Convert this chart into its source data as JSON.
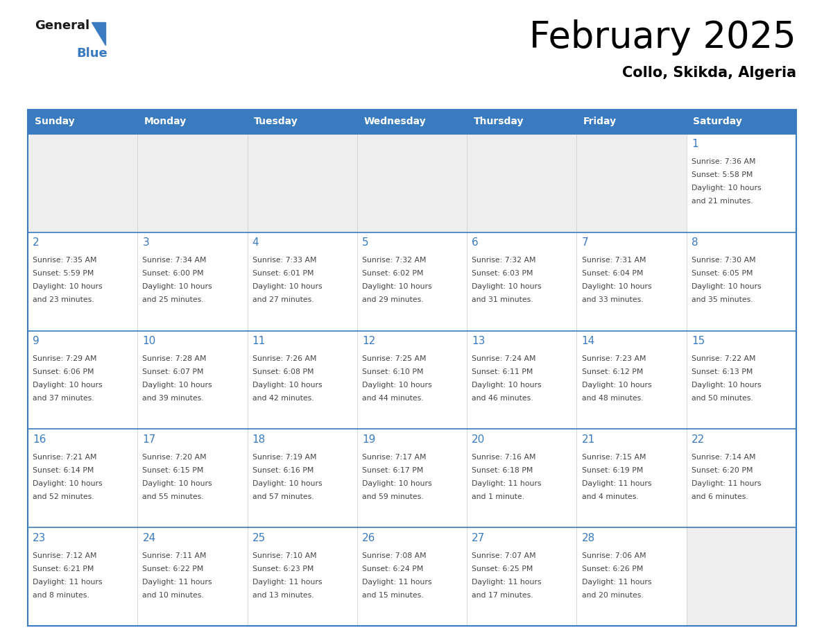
{
  "title": "February 2025",
  "subtitle": "Collo, Skikda, Algeria",
  "header_color": "#3a7bbf",
  "header_text_color": "#ffffff",
  "day_names": [
    "Sunday",
    "Monday",
    "Tuesday",
    "Wednesday",
    "Thursday",
    "Friday",
    "Saturday"
  ],
  "title_fontsize": 38,
  "subtitle_fontsize": 15,
  "border_color": "#3a7bbf",
  "day_number_color": "#3a7bbf",
  "text_color": "#444444",
  "logo_general_color": "#1a1a1a",
  "logo_blue_color": "#3a7bbf",
  "logo_triangle_color": "#3a7bbf",
  "cell_empty_bg": "#eeeeee",
  "cell_filled_bg": "#ffffff",
  "calendar_data": [
    [
      null,
      null,
      null,
      null,
      null,
      null,
      {
        "day": 1,
        "sunrise": "7:36 AM",
        "sunset": "5:58 PM",
        "daylight": "10 hours and 21 minutes."
      }
    ],
    [
      {
        "day": 2,
        "sunrise": "7:35 AM",
        "sunset": "5:59 PM",
        "daylight": "10 hours and 23 minutes."
      },
      {
        "day": 3,
        "sunrise": "7:34 AM",
        "sunset": "6:00 PM",
        "daylight": "10 hours and 25 minutes."
      },
      {
        "day": 4,
        "sunrise": "7:33 AM",
        "sunset": "6:01 PM",
        "daylight": "10 hours and 27 minutes."
      },
      {
        "day": 5,
        "sunrise": "7:32 AM",
        "sunset": "6:02 PM",
        "daylight": "10 hours and 29 minutes."
      },
      {
        "day": 6,
        "sunrise": "7:32 AM",
        "sunset": "6:03 PM",
        "daylight": "10 hours and 31 minutes."
      },
      {
        "day": 7,
        "sunrise": "7:31 AM",
        "sunset": "6:04 PM",
        "daylight": "10 hours and 33 minutes."
      },
      {
        "day": 8,
        "sunrise": "7:30 AM",
        "sunset": "6:05 PM",
        "daylight": "10 hours and 35 minutes."
      }
    ],
    [
      {
        "day": 9,
        "sunrise": "7:29 AM",
        "sunset": "6:06 PM",
        "daylight": "10 hours and 37 minutes."
      },
      {
        "day": 10,
        "sunrise": "7:28 AM",
        "sunset": "6:07 PM",
        "daylight": "10 hours and 39 minutes."
      },
      {
        "day": 11,
        "sunrise": "7:26 AM",
        "sunset": "6:08 PM",
        "daylight": "10 hours and 42 minutes."
      },
      {
        "day": 12,
        "sunrise": "7:25 AM",
        "sunset": "6:10 PM",
        "daylight": "10 hours and 44 minutes."
      },
      {
        "day": 13,
        "sunrise": "7:24 AM",
        "sunset": "6:11 PM",
        "daylight": "10 hours and 46 minutes."
      },
      {
        "day": 14,
        "sunrise": "7:23 AM",
        "sunset": "6:12 PM",
        "daylight": "10 hours and 48 minutes."
      },
      {
        "day": 15,
        "sunrise": "7:22 AM",
        "sunset": "6:13 PM",
        "daylight": "10 hours and 50 minutes."
      }
    ],
    [
      {
        "day": 16,
        "sunrise": "7:21 AM",
        "sunset": "6:14 PM",
        "daylight": "10 hours and 52 minutes."
      },
      {
        "day": 17,
        "sunrise": "7:20 AM",
        "sunset": "6:15 PM",
        "daylight": "10 hours and 55 minutes."
      },
      {
        "day": 18,
        "sunrise": "7:19 AM",
        "sunset": "6:16 PM",
        "daylight": "10 hours and 57 minutes."
      },
      {
        "day": 19,
        "sunrise": "7:17 AM",
        "sunset": "6:17 PM",
        "daylight": "10 hours and 59 minutes."
      },
      {
        "day": 20,
        "sunrise": "7:16 AM",
        "sunset": "6:18 PM",
        "daylight": "11 hours and 1 minute."
      },
      {
        "day": 21,
        "sunrise": "7:15 AM",
        "sunset": "6:19 PM",
        "daylight": "11 hours and 4 minutes."
      },
      {
        "day": 22,
        "sunrise": "7:14 AM",
        "sunset": "6:20 PM",
        "daylight": "11 hours and 6 minutes."
      }
    ],
    [
      {
        "day": 23,
        "sunrise": "7:12 AM",
        "sunset": "6:21 PM",
        "daylight": "11 hours and 8 minutes."
      },
      {
        "day": 24,
        "sunrise": "7:11 AM",
        "sunset": "6:22 PM",
        "daylight": "11 hours and 10 minutes."
      },
      {
        "day": 25,
        "sunrise": "7:10 AM",
        "sunset": "6:23 PM",
        "daylight": "11 hours and 13 minutes."
      },
      {
        "day": 26,
        "sunrise": "7:08 AM",
        "sunset": "6:24 PM",
        "daylight": "11 hours and 15 minutes."
      },
      {
        "day": 27,
        "sunrise": "7:07 AM",
        "sunset": "6:25 PM",
        "daylight": "11 hours and 17 minutes."
      },
      {
        "day": 28,
        "sunrise": "7:06 AM",
        "sunset": "6:26 PM",
        "daylight": "11 hours and 20 minutes."
      },
      null
    ]
  ]
}
